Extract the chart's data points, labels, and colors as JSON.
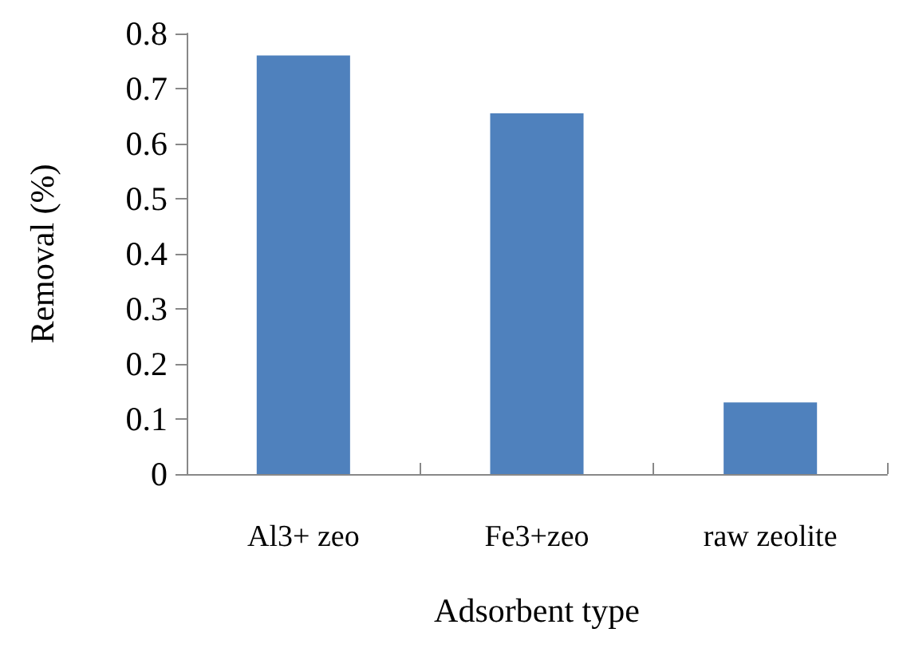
{
  "chart_data": {
    "type": "bar",
    "xlabel": "Adsorbent type",
    "ylabel": "Removal (%)",
    "categories": [
      "Al3+ zeo",
      "Fe3+zeo",
      "raw zeolite"
    ],
    "values": [
      0.76,
      0.655,
      0.13
    ],
    "color": "#4f81bd",
    "ylim": [
      0,
      0.8
    ],
    "yticks": [
      0,
      0.1,
      0.2,
      0.3,
      0.4,
      0.5,
      0.6,
      0.7,
      0.8
    ],
    "grid": false
  }
}
